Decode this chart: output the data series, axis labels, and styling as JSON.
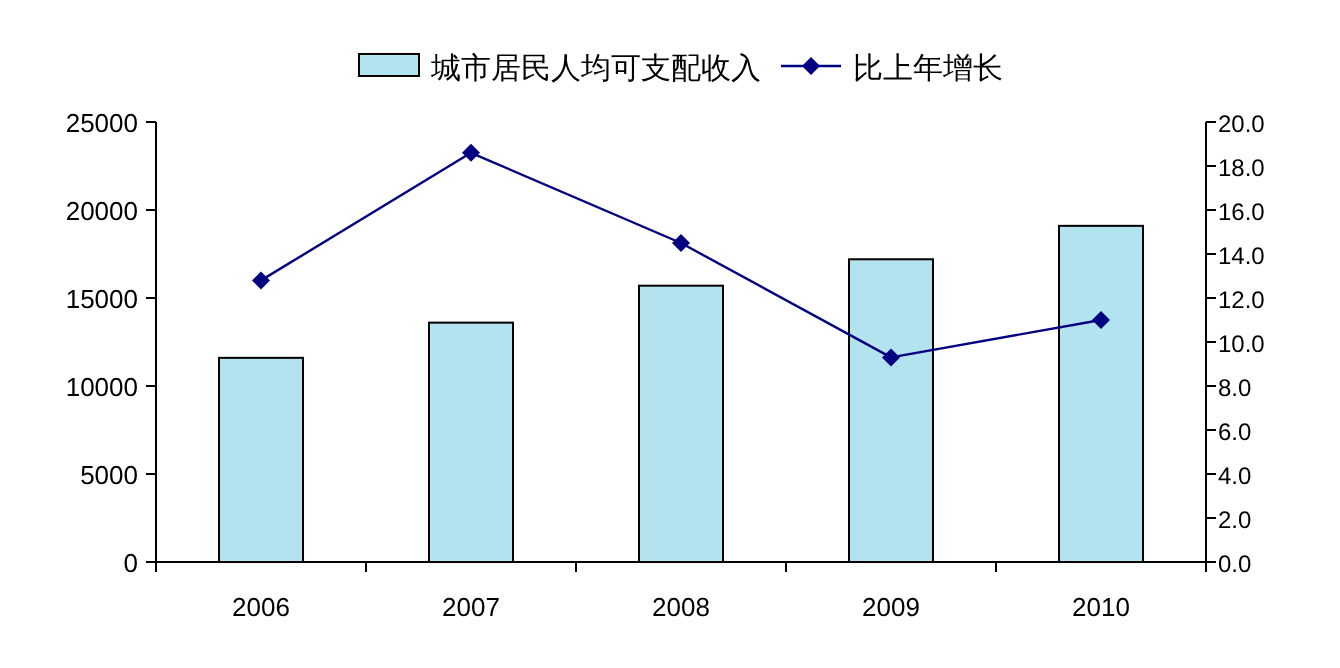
{
  "chart_data": {
    "type": "bar",
    "categories": [
      "2006",
      "2007",
      "2008",
      "2009",
      "2010"
    ],
    "series": [
      {
        "name": "城市居民人均可支配收入",
        "color": "#b3e3ee",
        "values": [
          11600,
          13600,
          15700,
          17200,
          19100
        ]
      },
      {
        "name": "比上年增长",
        "type": "line",
        "axis": "y2",
        "color": "#000080",
        "marker": "diamond",
        "values": [
          12.8,
          18.6,
          14.5,
          9.3,
          11.0
        ]
      }
    ],
    "ylim": [
      0,
      25000
    ],
    "yticks": [
      0,
      5000,
      10000,
      15000,
      20000,
      25000
    ],
    "y2lim": [
      0,
      20
    ],
    "y2ticks": [
      {
        "value": 0,
        "label": "0.0"
      },
      {
        "value": 2,
        "label": "2.0"
      },
      {
        "value": 4,
        "label": "4.0"
      },
      {
        "value": 6,
        "label": "6.0"
      },
      {
        "value": 8,
        "label": "8.0"
      },
      {
        "value": 10,
        "label": "10.0"
      },
      {
        "value": 12,
        "label": "12.0"
      },
      {
        "value": 14,
        "label": "14.0"
      },
      {
        "value": 16,
        "label": "16.0"
      },
      {
        "value": 18,
        "label": "18.0"
      },
      {
        "value": 20,
        "label": "20.0"
      }
    ],
    "grid": false,
    "legend": "top"
  }
}
